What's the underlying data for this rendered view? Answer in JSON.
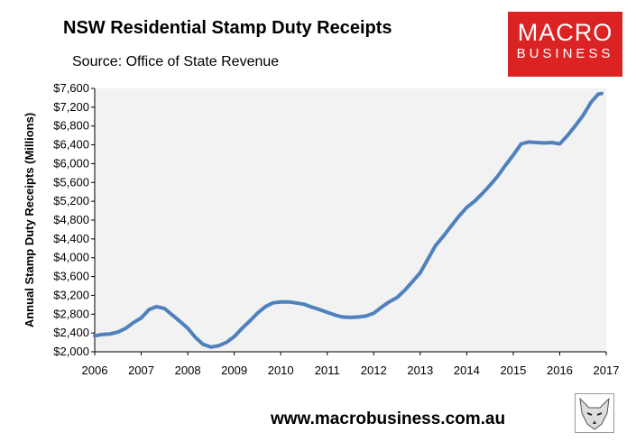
{
  "header": {
    "title": "NSW Residential Stamp Duty Receipts",
    "source": "Source: Office of State Revenue"
  },
  "logo": {
    "line1": "MACRO",
    "line2": "BUSINESS",
    "color": "#dc2323"
  },
  "footer": {
    "url": "www.macrobusiness.com.au"
  },
  "chart_data": {
    "type": "line",
    "title": "NSW Residential Stamp Duty Receipts",
    "subtitle": "Source: Office of State Revenue",
    "xlabel": "",
    "ylabel": "Annual Stamp Duty Receipts (Millions)",
    "xlim": [
      2006,
      2017
    ],
    "ylim": [
      2000,
      7600
    ],
    "x_ticks": [
      "2006",
      "2007",
      "2008",
      "2009",
      "2010",
      "2011",
      "2012",
      "2013",
      "2014",
      "2015",
      "2016",
      "2017"
    ],
    "y_ticks": [
      "$2,000",
      "$2,400",
      "$2,800",
      "$3,200",
      "$3,600",
      "$4,000",
      "$4,400",
      "$4,800",
      "$5,200",
      "$5,600",
      "$6,000",
      "$6,400",
      "$6,800",
      "$7,200",
      "$7,600"
    ],
    "grid": false,
    "legend": "none",
    "line_color": "#4f81bd",
    "plot_background": "#f2f2f2",
    "series": [
      {
        "x": [
          2006.0,
          2006.17,
          2006.33,
          2006.5,
          2006.67,
          2006.83,
          2007.0,
          2007.17,
          2007.33,
          2007.5,
          2007.67,
          2007.83,
          2008.0,
          2008.17,
          2008.33,
          2008.5,
          2008.67,
          2008.83,
          2009.0,
          2009.17,
          2009.33,
          2009.5,
          2009.67,
          2009.83,
          2010.0,
          2010.17,
          2010.33,
          2010.5,
          2010.67,
          2010.83,
          2011.0,
          2011.17,
          2011.33,
          2011.5,
          2011.67,
          2011.83,
          2012.0,
          2012.17,
          2012.33,
          2012.5,
          2012.67,
          2012.83,
          2013.0,
          2013.17,
          2013.33,
          2013.5,
          2013.67,
          2013.83,
          2014.0,
          2014.17,
          2014.33,
          2014.5,
          2014.67,
          2014.83,
          2015.0,
          2015.17,
          2015.33,
          2015.5,
          2015.67,
          2015.83,
          2016.0,
          2016.17,
          2016.33,
          2016.5,
          2016.67,
          2016.83,
          2016.9
        ],
        "values": [
          2340,
          2370,
          2380,
          2420,
          2500,
          2620,
          2720,
          2900,
          2960,
          2920,
          2780,
          2650,
          2500,
          2300,
          2160,
          2100,
          2130,
          2200,
          2320,
          2500,
          2650,
          2820,
          2960,
          3040,
          3060,
          3060,
          3040,
          3010,
          2950,
          2900,
          2840,
          2780,
          2740,
          2730,
          2740,
          2760,
          2820,
          2950,
          3060,
          3150,
          3310,
          3490,
          3680,
          3980,
          4260,
          4460,
          4680,
          4880,
          5070,
          5200,
          5360,
          5540,
          5740,
          5960,
          6180,
          6420,
          6460,
          6450,
          6440,
          6450,
          6420,
          6600,
          6800,
          7020,
          7300,
          7480,
          7490
        ]
      }
    ]
  }
}
